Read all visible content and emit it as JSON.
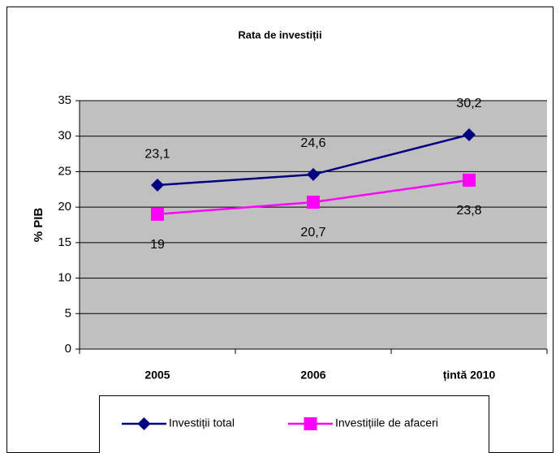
{
  "chart_data": {
    "type": "line",
    "title": "Rata de investiții",
    "ylabel": "% PIB",
    "categories": [
      "2005",
      "2006",
      "țintă 2010"
    ],
    "series": [
      {
        "name": "Investiții total",
        "color": "#000080",
        "marker": "diamond",
        "values": [
          23.1,
          24.6,
          30.2
        ],
        "value_labels": [
          "23,1",
          "24,6",
          "30,2"
        ]
      },
      {
        "name": "Investițiile de afaceri",
        "color": "#ff00ff",
        "marker": "square",
        "values": [
          19,
          20.7,
          23.8
        ],
        "value_labels": [
          "19",
          "20,7",
          "23,8"
        ]
      }
    ],
    "ylim": [
      0,
      35
    ],
    "yticks": [
      0,
      5,
      10,
      15,
      20,
      25,
      30,
      35
    ],
    "grid": true,
    "legend": "bottom"
  }
}
